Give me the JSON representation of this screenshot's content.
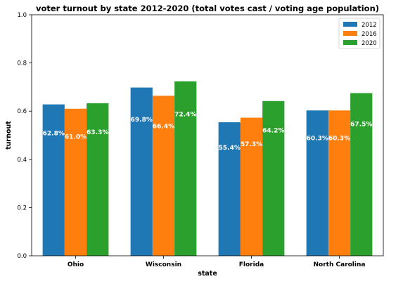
{
  "chart_data": {
    "type": "bar",
    "title": "voter turnout by state 2012-2020 (total votes cast / voting age population)",
    "xlabel": "state",
    "ylabel": "turnout",
    "categories": [
      "Ohio",
      "Wisconsin",
      "Florida",
      "North Carolina"
    ],
    "series": [
      {
        "name": "2012",
        "color": "#1f77b4",
        "values": [
          0.628,
          0.698,
          0.554,
          0.603
        ],
        "labels": [
          "62.8%",
          "69.8%",
          "55.4%",
          "60.3%"
        ]
      },
      {
        "name": "2016",
        "color": "#ff7f0e",
        "values": [
          0.61,
          0.664,
          0.573,
          0.603
        ],
        "labels": [
          "61.0%",
          "66.4%",
          "57.3%",
          "60.3%"
        ]
      },
      {
        "name": "2020",
        "color": "#2ca02c",
        "values": [
          0.633,
          0.724,
          0.642,
          0.675
        ],
        "labels": [
          "63.3%",
          "72.4%",
          "64.2%",
          "67.5%"
        ]
      }
    ],
    "ylim": [
      0,
      1.0
    ],
    "yticks": [
      "0.0",
      "0.2",
      "0.4",
      "0.6",
      "0.8",
      "1.0"
    ],
    "ytick_values": [
      0,
      0.2,
      0.4,
      0.6,
      0.8,
      1.0
    ],
    "grid": false,
    "legend_position": "top-right"
  }
}
